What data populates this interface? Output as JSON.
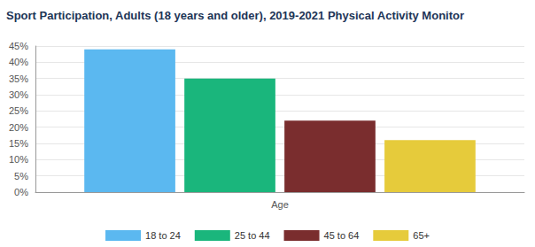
{
  "chart_data": {
    "type": "bar",
    "title": "Sport Participation, Adults (18 years and older), 2019-2021 Physical Activity Monitor",
    "categories": [
      "Age"
    ],
    "series": [
      {
        "name": "18 to 24",
        "color": "#5bb8f0",
        "values": [
          44
        ]
      },
      {
        "name": "25 to 44",
        "color": "#1ab67c",
        "values": [
          35
        ]
      },
      {
        "name": "45 to 64",
        "color": "#7a2d2e",
        "values": [
          22
        ]
      },
      {
        "name": "65+",
        "color": "#e6cb3b",
        "values": [
          16
        ]
      }
    ],
    "ylim": [
      0,
      45
    ],
    "yticks": [
      {
        "value": 0,
        "label": "0%"
      },
      {
        "value": 5,
        "label": "5%"
      },
      {
        "value": 10,
        "label": "10%"
      },
      {
        "value": 15,
        "label": "15%"
      },
      {
        "value": 20,
        "label": "20%"
      },
      {
        "value": 25,
        "label": "25%"
      },
      {
        "value": 30,
        "label": "30%"
      },
      {
        "value": 35,
        "label": "35%"
      },
      {
        "value": 40,
        "label": "40%"
      },
      {
        "value": 45,
        "label": "45%"
      }
    ],
    "grid": true,
    "legend": "bottom"
  }
}
